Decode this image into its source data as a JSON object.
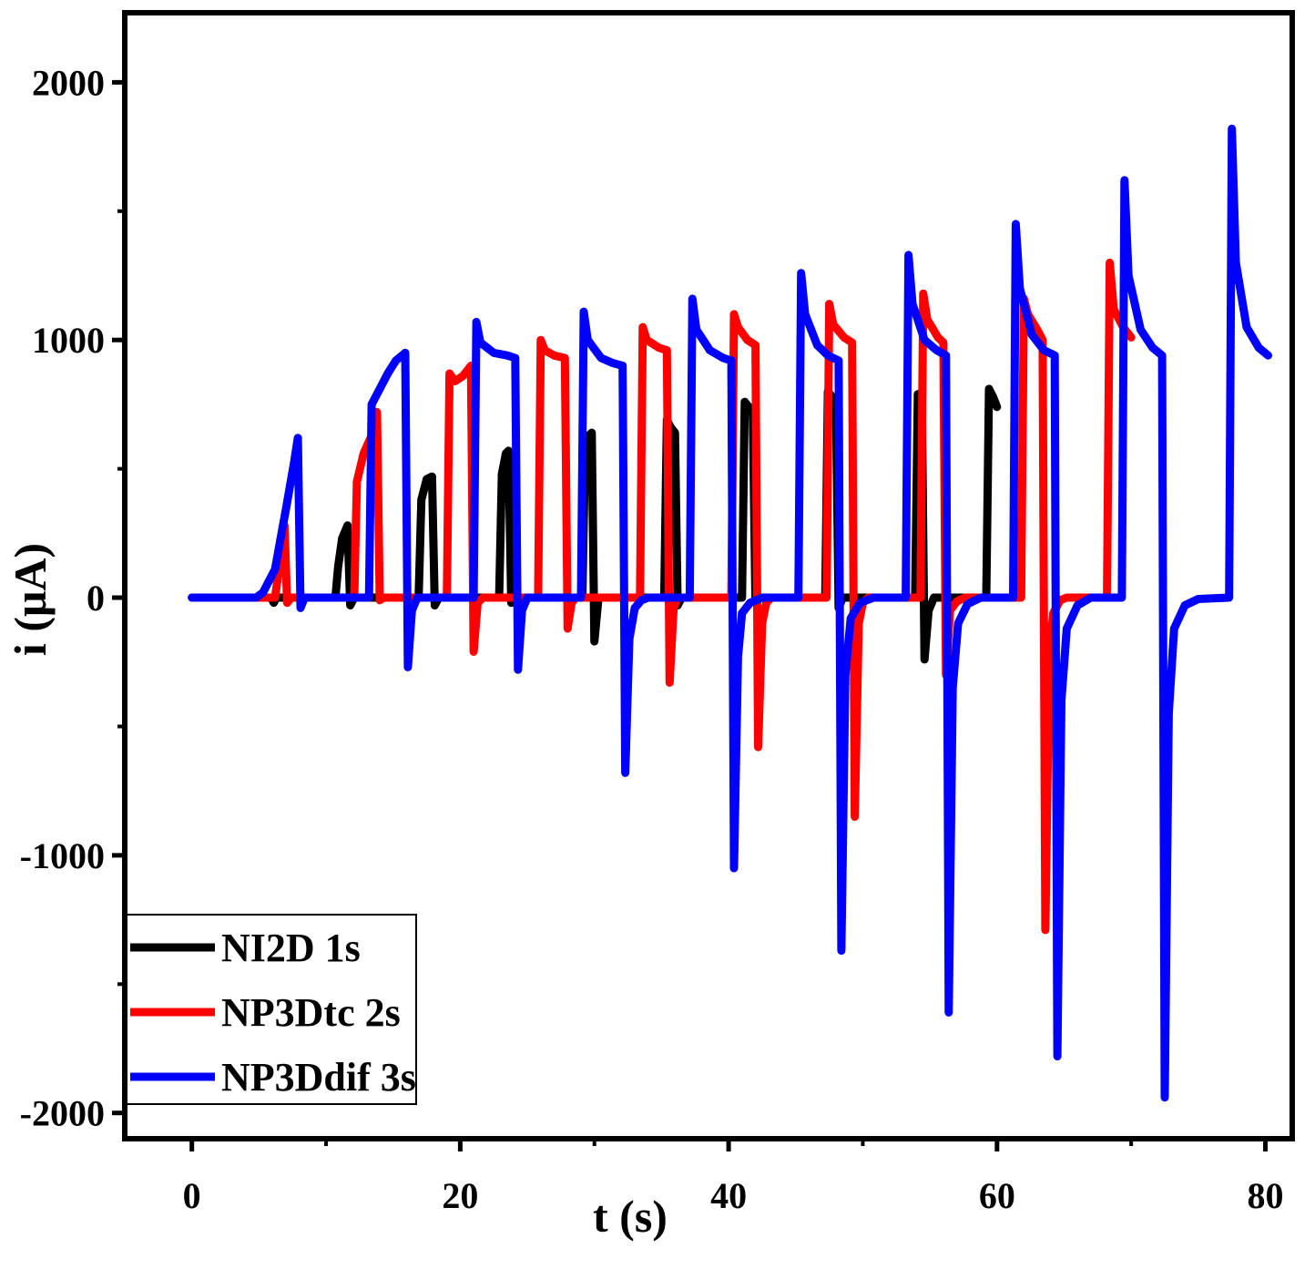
{
  "chart_data": {
    "type": "line",
    "xlabel": "t (s)",
    "ylabel": "i (μA)",
    "xlim": [
      -5,
      82
    ],
    "ylim": [
      -2100,
      2270
    ],
    "xticks": [
      0,
      20,
      40,
      60,
      80
    ],
    "xtick_labels": [
      "0",
      "20",
      "40",
      "60",
      "80"
    ],
    "yticks": [
      -2000,
      -1000,
      0,
      1000,
      2000
    ],
    "ytick_labels": [
      "-2000",
      "-1000",
      "0",
      "1000",
      "2000"
    ],
    "grid": false,
    "legend_position": "bottom-left",
    "series": [
      {
        "name": "NI2D 1s",
        "color": "#000000",
        "points": [
          [
            0,
            0
          ],
          [
            5.9,
            0
          ],
          [
            6.1,
            -20
          ],
          [
            6.3,
            0
          ],
          [
            10.7,
            0
          ],
          [
            10.9,
            120
          ],
          [
            11.2,
            230
          ],
          [
            11.6,
            280
          ],
          [
            11.8,
            -30
          ],
          [
            12.1,
            0
          ],
          [
            16.9,
            0
          ],
          [
            17.1,
            380
          ],
          [
            17.5,
            460
          ],
          [
            17.9,
            470
          ],
          [
            18.1,
            -30
          ],
          [
            18.4,
            0
          ],
          [
            22.9,
            0
          ],
          [
            23.1,
            480
          ],
          [
            23.4,
            560
          ],
          [
            23.6,
            570
          ],
          [
            23.8,
            -20
          ],
          [
            24.1,
            0
          ],
          [
            29.1,
            0
          ],
          [
            29.3,
            560
          ],
          [
            29.6,
            630
          ],
          [
            29.8,
            640
          ],
          [
            30.0,
            -170
          ],
          [
            30.3,
            0
          ],
          [
            35.2,
            0
          ],
          [
            35.4,
            690
          ],
          [
            35.7,
            660
          ],
          [
            36.0,
            640
          ],
          [
            36.2,
            -30
          ],
          [
            36.5,
            0
          ],
          [
            41.0,
            0
          ],
          [
            41.2,
            760
          ],
          [
            41.5,
            740
          ],
          [
            41.8,
            730
          ],
          [
            42.0,
            -20
          ],
          [
            42.3,
            0
          ],
          [
            47.2,
            0
          ],
          [
            47.4,
            800
          ],
          [
            47.7,
            780
          ],
          [
            48.0,
            760
          ],
          [
            48.2,
            -40
          ],
          [
            48.5,
            0
          ],
          [
            53.9,
            0
          ],
          [
            54.1,
            790
          ],
          [
            54.4,
            760
          ],
          [
            54.6,
            -240
          ],
          [
            54.9,
            -50
          ],
          [
            55.3,
            0
          ],
          [
            59.2,
            0
          ],
          [
            59.4,
            810
          ],
          [
            59.7,
            780
          ],
          [
            60.0,
            740
          ]
        ]
      },
      {
        "name": "NP3Dtc 2s",
        "color": "#ff0000",
        "points": [
          [
            0,
            0
          ],
          [
            6.2,
            0
          ],
          [
            6.6,
            150
          ],
          [
            6.9,
            280
          ],
          [
            7.1,
            -20
          ],
          [
            7.4,
            0
          ],
          [
            12.1,
            0
          ],
          [
            12.3,
            450
          ],
          [
            12.8,
            560
          ],
          [
            13.4,
            630
          ],
          [
            13.8,
            720
          ],
          [
            14.0,
            -10
          ],
          [
            14.3,
            0
          ],
          [
            19.0,
            0
          ],
          [
            19.2,
            870
          ],
          [
            19.6,
            840
          ],
          [
            20.2,
            860
          ],
          [
            20.8,
            900
          ],
          [
            21.0,
            -210
          ],
          [
            21.3,
            -20
          ],
          [
            21.7,
            0
          ],
          [
            25.8,
            0
          ],
          [
            26.0,
            1000
          ],
          [
            26.3,
            960
          ],
          [
            27.0,
            940
          ],
          [
            27.8,
            930
          ],
          [
            28.0,
            -120
          ],
          [
            28.3,
            -20
          ],
          [
            28.6,
            0
          ],
          [
            33.4,
            0
          ],
          [
            33.6,
            1050
          ],
          [
            33.9,
            1000
          ],
          [
            34.8,
            970
          ],
          [
            35.4,
            960
          ],
          [
            35.6,
            -330
          ],
          [
            35.9,
            -40
          ],
          [
            36.2,
            0
          ],
          [
            40.2,
            0
          ],
          [
            40.4,
            1100
          ],
          [
            40.7,
            1050
          ],
          [
            41.4,
            1000
          ],
          [
            42.0,
            980
          ],
          [
            42.2,
            -580
          ],
          [
            42.5,
            -100
          ],
          [
            42.8,
            -20
          ],
          [
            43.2,
            0
          ],
          [
            47.3,
            0
          ],
          [
            47.5,
            1140
          ],
          [
            47.8,
            1060
          ],
          [
            48.6,
            1010
          ],
          [
            49.2,
            990
          ],
          [
            49.4,
            -850
          ],
          [
            49.7,
            -100
          ],
          [
            50.0,
            -20
          ],
          [
            50.4,
            0
          ],
          [
            54.3,
            0
          ],
          [
            54.5,
            1180
          ],
          [
            54.8,
            1080
          ],
          [
            55.6,
            1010
          ],
          [
            56.0,
            990
          ],
          [
            56.2,
            -300
          ],
          [
            56.5,
            -50
          ],
          [
            57.0,
            -15
          ],
          [
            57.6,
            0
          ],
          [
            61.8,
            0
          ],
          [
            62.0,
            1160
          ],
          [
            62.3,
            1100
          ],
          [
            63.0,
            1040
          ],
          [
            63.4,
            1000
          ],
          [
            63.6,
            -1290
          ],
          [
            63.9,
            -200
          ],
          [
            64.2,
            -60
          ],
          [
            64.7,
            -10
          ],
          [
            65.2,
            0
          ],
          [
            68.2,
            0
          ],
          [
            68.4,
            1300
          ],
          [
            68.7,
            1120
          ],
          [
            69.4,
            1050
          ],
          [
            70.0,
            1010
          ]
        ]
      },
      {
        "name": "NP3Ddif 3s",
        "color": "#0000ff",
        "points": [
          [
            0,
            0
          ],
          [
            4.8,
            0
          ],
          [
            5.3,
            20
          ],
          [
            6.2,
            110
          ],
          [
            7.0,
            340
          ],
          [
            7.6,
            520
          ],
          [
            7.9,
            620
          ],
          [
            8.1,
            -40
          ],
          [
            8.4,
            0
          ],
          [
            13.2,
            0
          ],
          [
            13.4,
            750
          ],
          [
            13.9,
            800
          ],
          [
            14.6,
            870
          ],
          [
            15.2,
            920
          ],
          [
            15.9,
            950
          ],
          [
            16.1,
            -270
          ],
          [
            16.4,
            -50
          ],
          [
            16.8,
            0
          ],
          [
            21.0,
            0
          ],
          [
            21.2,
            1070
          ],
          [
            21.5,
            990
          ],
          [
            22.5,
            950
          ],
          [
            23.5,
            940
          ],
          [
            24.1,
            930
          ],
          [
            24.3,
            -280
          ],
          [
            24.6,
            -50
          ],
          [
            25.0,
            0
          ],
          [
            29.0,
            0
          ],
          [
            29.2,
            1110
          ],
          [
            29.5,
            1000
          ],
          [
            30.5,
            930
          ],
          [
            31.4,
            910
          ],
          [
            32.1,
            900
          ],
          [
            32.3,
            -680
          ],
          [
            32.6,
            -160
          ],
          [
            33.0,
            -40
          ],
          [
            33.5,
            -10
          ],
          [
            34.0,
            0
          ],
          [
            37.1,
            0
          ],
          [
            37.3,
            1160
          ],
          [
            37.6,
            1040
          ],
          [
            38.6,
            960
          ],
          [
            39.6,
            930
          ],
          [
            40.2,
            920
          ],
          [
            40.4,
            -1050
          ],
          [
            40.7,
            -230
          ],
          [
            41.0,
            -60
          ],
          [
            41.6,
            -20
          ],
          [
            42.5,
            0
          ],
          [
            45.2,
            0
          ],
          [
            45.4,
            1260
          ],
          [
            45.7,
            1100
          ],
          [
            46.6,
            980
          ],
          [
            47.4,
            940
          ],
          [
            48.2,
            920
          ],
          [
            48.4,
            -1370
          ],
          [
            48.7,
            -300
          ],
          [
            49.1,
            -80
          ],
          [
            49.8,
            -20
          ],
          [
            50.8,
            0
          ],
          [
            53.2,
            0
          ],
          [
            53.4,
            1330
          ],
          [
            53.7,
            1140
          ],
          [
            54.6,
            1000
          ],
          [
            55.5,
            960
          ],
          [
            56.2,
            940
          ],
          [
            56.4,
            -1610
          ],
          [
            56.7,
            -350
          ],
          [
            57.1,
            -100
          ],
          [
            57.8,
            -25
          ],
          [
            58.8,
            0
          ],
          [
            61.2,
            0
          ],
          [
            61.4,
            1450
          ],
          [
            61.7,
            1200
          ],
          [
            62.6,
            1020
          ],
          [
            63.5,
            960
          ],
          [
            64.3,
            940
          ],
          [
            64.5,
            -1780
          ],
          [
            64.8,
            -400
          ],
          [
            65.2,
            -120
          ],
          [
            66.0,
            -30
          ],
          [
            67.0,
            0
          ],
          [
            69.3,
            0
          ],
          [
            69.5,
            1620
          ],
          [
            69.8,
            1250
          ],
          [
            70.7,
            1040
          ],
          [
            71.6,
            970
          ],
          [
            72.3,
            940
          ],
          [
            72.5,
            -1940
          ],
          [
            72.8,
            -450
          ],
          [
            73.2,
            -120
          ],
          [
            74.0,
            -30
          ],
          [
            75.0,
            -5
          ],
          [
            77.3,
            0
          ],
          [
            77.5,
            1820
          ],
          [
            77.8,
            1300
          ],
          [
            78.6,
            1050
          ],
          [
            79.5,
            970
          ],
          [
            80.2,
            940
          ]
        ]
      }
    ]
  }
}
